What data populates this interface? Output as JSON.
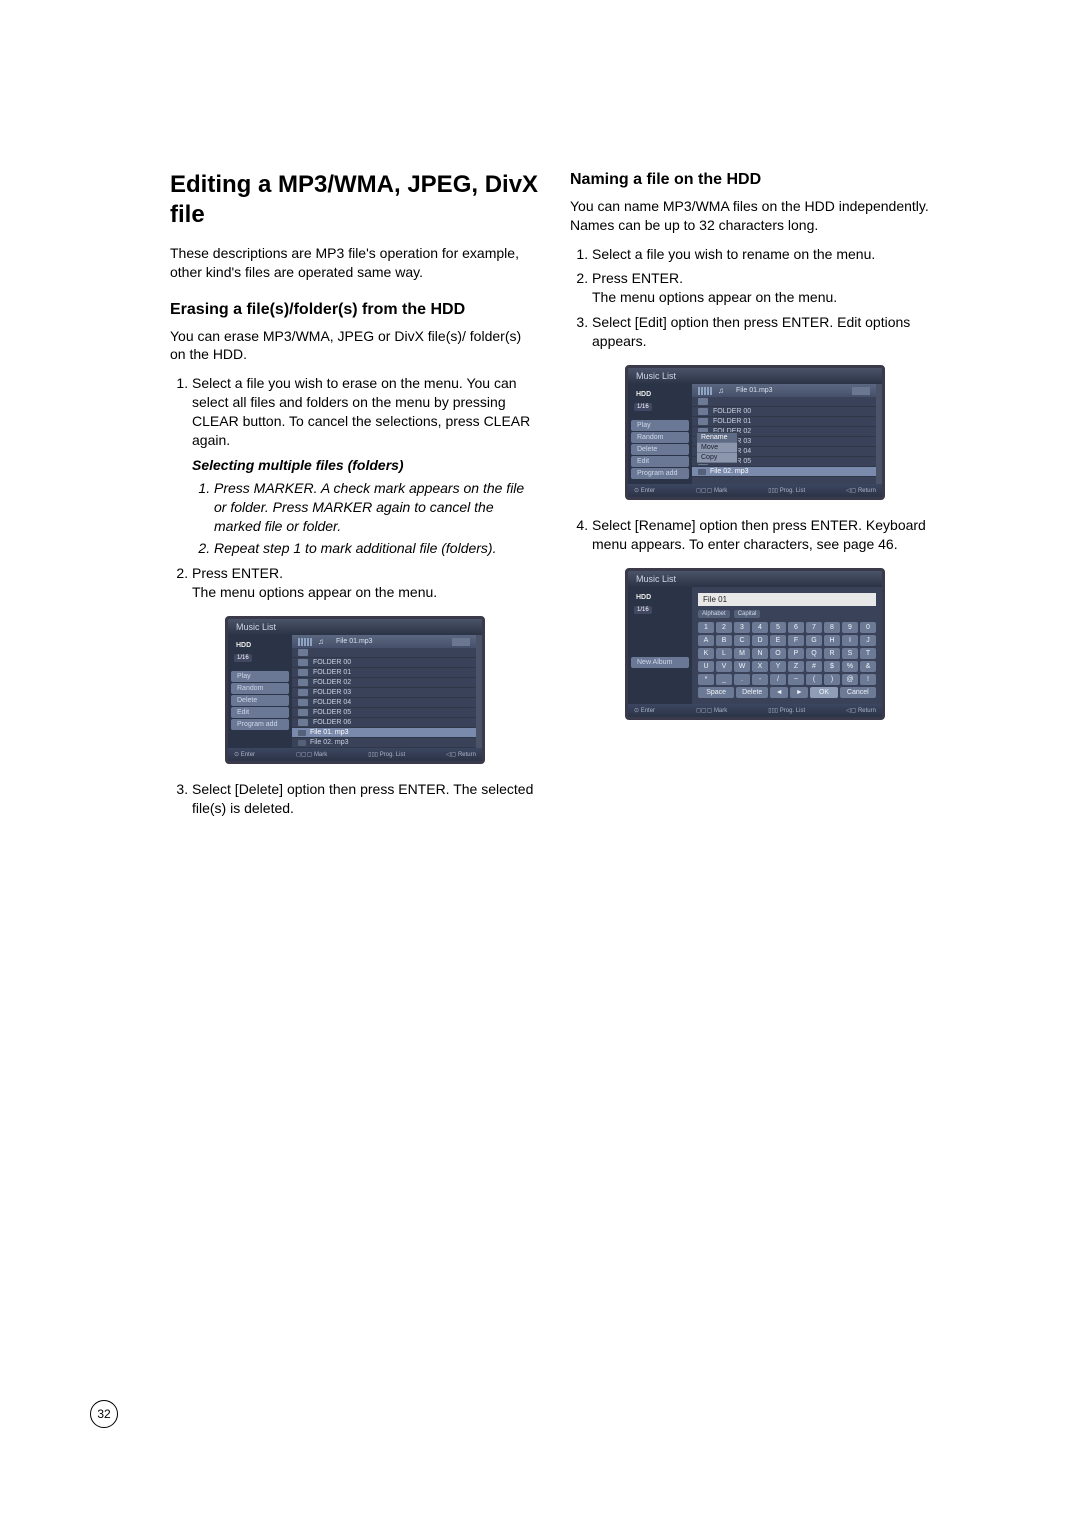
{
  "page_number": "32",
  "left": {
    "h1": "Editing a MP3/WMA, JPEG, DivX file",
    "intro": "These descriptions are MP3 file's operation for example, other kind's files are operated same way.",
    "h2": "Erasing a file(s)/folder(s) from the HDD",
    "body1": "You can erase MP3/WMA, JPEG or DivX file(s)/ folder(s) on the HDD.",
    "step1": "Select a file you wish to erase on the menu. You can select all files and folders on the menu by pressing CLEAR button. To cancel the selections, press CLEAR again.",
    "sub_title": "Selecting multiple files (folders)",
    "sub1": "Press MARKER. A check mark appears on the file or folder. Press MARKER again to cancel the marked file or folder.",
    "sub2": "Repeat step 1 to mark additional file (folders).",
    "step2a": "Press ENTER.",
    "step2b": "The menu options appear on the menu.",
    "step3": "Select [Delete] option then press ENTER. The selected file(s) is deleted."
  },
  "right": {
    "h2": "Naming a file on the HDD",
    "body1": "You can name MP3/WMA files on the HDD independently. Names can be up to 32 characters long.",
    "step1": "Select a file you wish to rename on the menu.",
    "step2a": "Press ENTER.",
    "step2b": "The menu options appear on the menu.",
    "step3": "Select [Edit] option then press ENTER. Edit options appears.",
    "step4": "Select [Rename] option then press ENTER. Keyboard menu appears. To enter characters, see page 46."
  },
  "figure": {
    "title": "Music List",
    "hdd": "HDD",
    "badge": "1/16",
    "note": "♫",
    "current_file": "File 01.mp3",
    "folders": [
      "FOLDER 00",
      "FOLDER 01",
      "FOLDER 02",
      "FOLDER 03",
      "FOLDER 04",
      "FOLDER 05",
      "FOLDER 06"
    ],
    "files": [
      "File 01. mp3",
      "File 02. mp3"
    ],
    "side_items_a": [
      "Play",
      "Random",
      "Delete",
      "Edit",
      "Program add"
    ],
    "side_items_b": [
      "Play",
      "Random",
      "Delete",
      "Edit",
      "Program add"
    ],
    "popup": [
      "Rename",
      "Move",
      "Copy"
    ],
    "footer": {
      "enter": "⊙ Enter",
      "mark": "◻▢▢ Mark",
      "prog": "▯▯▯ Prog. List",
      "ret": "◁▢ Return"
    },
    "side_c": "New Album",
    "kb_input": "File 01",
    "kb_modes": [
      "Alphabet",
      "Capital"
    ],
    "kb_row1": [
      "1",
      "2",
      "3",
      "4",
      "5",
      "6",
      "7",
      "8",
      "9",
      "0"
    ],
    "kb_row2": [
      "A",
      "B",
      "C",
      "D",
      "E",
      "F",
      "G",
      "H",
      "I",
      "J"
    ],
    "kb_row3": [
      "K",
      "L",
      "M",
      "N",
      "O",
      "P",
      "Q",
      "R",
      "S",
      "T"
    ],
    "kb_row4": [
      "U",
      "V",
      "W",
      "X",
      "Y",
      "Z",
      "#",
      "$",
      "%",
      "&"
    ],
    "kb_row5": [
      "*",
      "_",
      ".",
      "-",
      "/",
      "~",
      "(",
      ")",
      "@",
      "!"
    ],
    "kb_bottom": [
      "Space",
      "Delete",
      "◄",
      "►",
      "OK",
      "Cancel"
    ]
  }
}
